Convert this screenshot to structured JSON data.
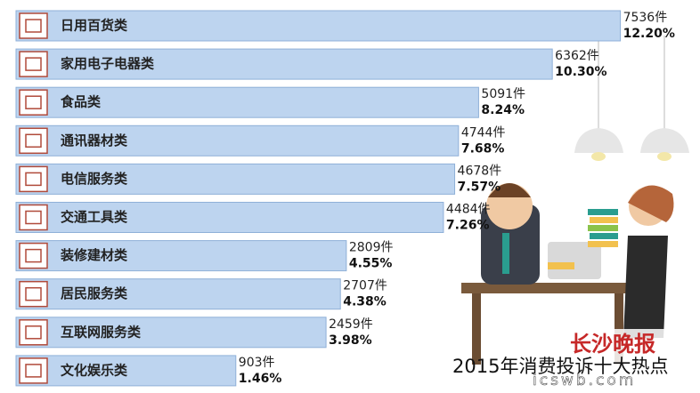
{
  "chart_data": {
    "type": "bar",
    "title": "2015年消费投诉十大热点",
    "source": "长沙晚报",
    "watermark": "icswb.com",
    "categories": [
      "日用百货类",
      "家用电子电器类",
      "食品类",
      "通讯器材类",
      "电信服务类",
      "交通工具类",
      "装修建材类",
      "居民服务类",
      "互联网服务类",
      "文化娱乐类"
    ],
    "values": [
      7536,
      6362,
      5091,
      4744,
      4678,
      4484,
      2809,
      2707,
      2459,
      903
    ],
    "value_labels": [
      "7536件",
      "6362件",
      "5091件",
      "4744件",
      "4678件",
      "4484件",
      "2809件",
      "2707件",
      "2459件",
      "903件"
    ],
    "shares": [
      12.2,
      10.3,
      8.24,
      7.68,
      7.57,
      7.26,
      4.55,
      4.38,
      3.98,
      1.46
    ],
    "share_labels": [
      "12.20%",
      "10.30%",
      "8.24%",
      "7.68%",
      "7.57%",
      "7.26%",
      "4.55%",
      "4.38%",
      "3.98%",
      "1.46%"
    ],
    "color": "#bdd4ef"
  }
}
